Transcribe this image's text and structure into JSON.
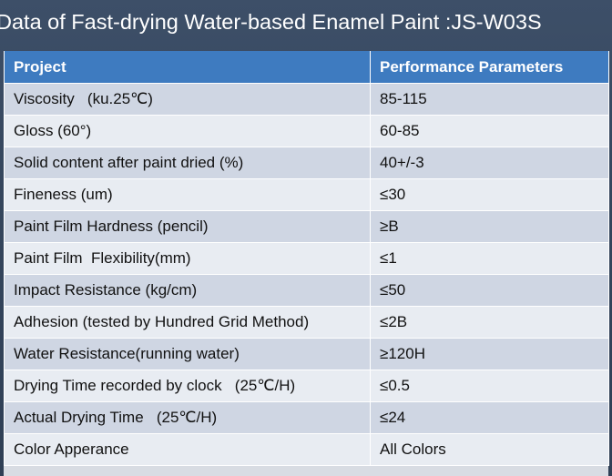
{
  "title": "Data of Fast-drying Water-based Enamel Paint :JS-W03S",
  "table": {
    "headers": [
      "Project",
      "Performance Parameters"
    ],
    "rows": [
      [
        "Viscosity   (ku.25℃)",
        "85-115"
      ],
      [
        "Gloss (60°)",
        "60-85"
      ],
      [
        "Solid content after paint dried (%)",
        "40+/-3"
      ],
      [
        "Fineness (um)",
        "≤30"
      ],
      [
        "Paint Film Hardness (pencil)",
        "≥B"
      ],
      [
        "Paint Film  Flexibility(mm)",
        "≤1"
      ],
      [
        "Impact Resistance (kg/cm)",
        "≤50"
      ],
      [
        "Adhesion (tested by Hundred Grid Method)",
        "≤2B"
      ],
      [
        "Water Resistance(running water)",
        "≥120H"
      ],
      [
        "Drying Time recorded by clock   (25℃/H)",
        "≤0.5"
      ],
      [
        "Actual Drying Time   (25℃/H)",
        "≤24"
      ],
      [
        "Color Apperance",
        "All Colors"
      ]
    ]
  }
}
